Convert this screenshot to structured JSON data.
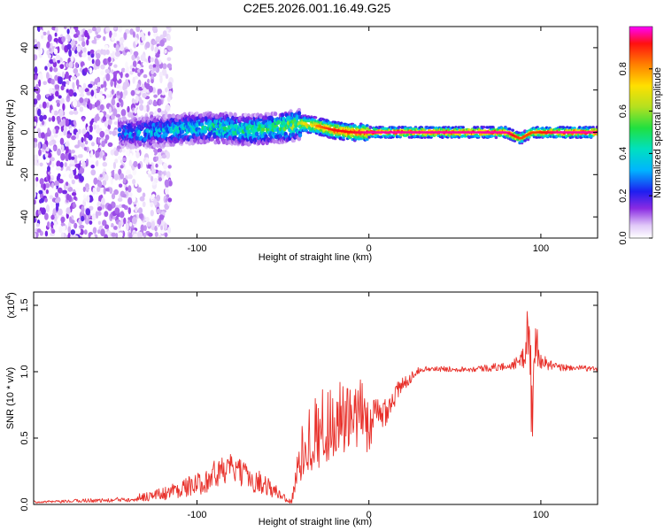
{
  "figure_title": "C2E5.2026.001.16.49.G25",
  "chart_data": [
    {
      "type": "heatmap",
      "title": "C2E5.2026.001.16.49.G25",
      "xlabel": "Height of straight line (km)",
      "ylabel": "Frequency (Hz)",
      "xlim": [
        -195,
        133
      ],
      "ylim": [
        -50,
        50
      ],
      "x_ticks": [
        -100,
        0,
        100
      ],
      "x_tick_labels": [
        "-100",
        "0",
        "100"
      ],
      "y_ticks": [
        -40,
        -20,
        0,
        20,
        40
      ],
      "y_tick_labels": [
        "-40",
        "-20",
        "0",
        "20",
        "40"
      ],
      "ridge": {
        "description": "dominant spectral ridge (frequency vs height)",
        "x": [
          -145,
          -130,
          -115,
          -100,
          -85,
          -70,
          -55,
          -45,
          -38,
          -30,
          -20,
          -10,
          0,
          20,
          50,
          80,
          88,
          95,
          110,
          133
        ],
        "y": [
          0,
          0,
          1,
          2,
          2,
          1,
          2,
          3,
          4,
          3,
          1,
          0,
          0,
          0,
          0,
          0,
          -3,
          0,
          0,
          0
        ],
        "amplitude": [
          0.35,
          0.4,
          0.45,
          0.5,
          0.55,
          0.55,
          0.6,
          0.7,
          0.75,
          0.85,
          0.95,
          0.95,
          1.0,
          1.0,
          1.0,
          1.0,
          0.9,
          0.9,
          1.0,
          1.0
        ]
      },
      "colorbar": {
        "label": "Normalized spectral amplitude",
        "range": [
          0,
          1
        ],
        "ticks": [
          0.0,
          0.2,
          0.4,
          0.6,
          0.8
        ],
        "tick_labels": [
          "0.0",
          "0.2",
          "0.4",
          "0.6",
          "0.8"
        ]
      }
    },
    {
      "type": "line",
      "xlabel": "Height of straight line (km)",
      "ylabel": "SNR (10 * v/v)",
      "y_scale_label": "(x10",
      "y_scale_exponent": "4",
      "y_scale_close": ")",
      "xlim": [
        -195,
        133
      ],
      "ylim": [
        0,
        1.6
      ],
      "x_ticks": [
        -100,
        0,
        100
      ],
      "x_tick_labels": [
        "-100",
        "0",
        "100"
      ],
      "y_ticks": [
        0.0,
        0.5,
        1.0,
        1.5
      ],
      "y_tick_labels": [
        "0.0",
        "0.5",
        "1.0",
        "1.5"
      ],
      "series": [
        {
          "name": "SNR",
          "color": "#e8302a",
          "x": [
            -195,
            -180,
            -165,
            -150,
            -135,
            -120,
            -110,
            -100,
            -90,
            -80,
            -70,
            -60,
            -55,
            -50,
            -45,
            -40,
            -35,
            -30,
            -25,
            -20,
            -15,
            -10,
            -5,
            0,
            5,
            10,
            15,
            20,
            25,
            30,
            40,
            50,
            60,
            70,
            80,
            85,
            90,
            93,
            95,
            97,
            100,
            105,
            110,
            120,
            133
          ],
          "y": [
            0.02,
            0.02,
            0.03,
            0.03,
            0.05,
            0.08,
            0.12,
            0.15,
            0.22,
            0.28,
            0.2,
            0.15,
            0.1,
            0.06,
            0.02,
            0.35,
            0.5,
            0.55,
            0.6,
            0.62,
            0.65,
            0.58,
            0.7,
            0.6,
            0.65,
            0.72,
            0.82,
            0.9,
            0.97,
            1.02,
            1.02,
            1.02,
            1.02,
            1.03,
            1.04,
            1.06,
            1.1,
            1.4,
            0.6,
            1.25,
            1.08,
            1.05,
            1.03,
            1.03,
            1.02
          ],
          "noise": [
            0.01,
            0.01,
            0.015,
            0.015,
            0.03,
            0.05,
            0.07,
            0.08,
            0.12,
            0.1,
            0.1,
            0.08,
            0.06,
            0.04,
            0.02,
            0.2,
            0.25,
            0.3,
            0.3,
            0.3,
            0.3,
            0.28,
            0.25,
            0.22,
            0.18,
            0.12,
            0.1,
            0.06,
            0.04,
            0.02,
            0.02,
            0.02,
            0.02,
            0.03,
            0.03,
            0.04,
            0.08,
            0.3,
            0.35,
            0.2,
            0.06,
            0.04,
            0.03,
            0.02,
            0.02
          ]
        }
      ]
    }
  ]
}
